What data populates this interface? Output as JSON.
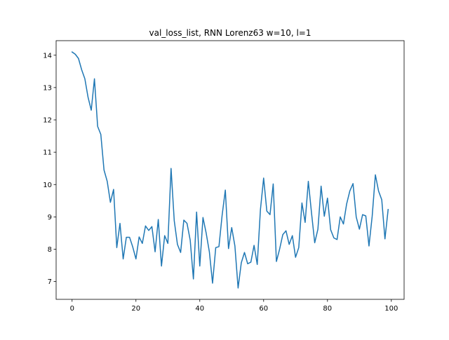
{
  "chart_data": {
    "type": "line",
    "title": "val_loss_list, RNN Lorenz63 w=10, l=1",
    "xlabel": "",
    "ylabel": "",
    "xlim": [
      -5,
      104
    ],
    "ylim": [
      6.45,
      14.45
    ],
    "xticks": [
      0,
      20,
      40,
      60,
      80,
      100
    ],
    "yticks": [
      7,
      8,
      9,
      10,
      11,
      12,
      13,
      14
    ],
    "grid": false,
    "line_color": "#1f77b4",
    "series": [
      {
        "x": [
          0,
          1,
          2,
          3,
          4,
          5,
          6,
          7,
          8,
          9,
          10,
          11,
          12,
          13,
          14,
          15,
          16,
          17,
          18,
          19,
          20,
          21,
          22,
          23,
          24,
          25,
          26,
          27,
          28,
          29,
          30,
          31,
          32,
          33,
          34,
          35,
          36,
          37,
          38,
          39,
          40,
          41,
          42,
          43,
          44,
          45,
          46,
          47,
          48,
          49,
          50,
          51,
          52,
          53,
          54,
          55,
          56,
          57,
          58,
          59,
          60,
          61,
          62,
          63,
          64,
          65,
          66,
          67,
          68,
          69,
          70,
          71,
          72,
          73,
          74,
          75,
          76,
          77,
          78,
          79,
          80,
          81,
          82,
          83,
          84,
          85,
          86,
          87,
          88,
          89,
          90,
          91,
          92,
          93,
          94,
          95,
          96,
          97,
          98,
          99
        ],
        "values": [
          14.1,
          14.03,
          13.9,
          13.55,
          13.27,
          12.7,
          12.3,
          13.27,
          11.8,
          11.55,
          10.45,
          10.1,
          9.45,
          9.85,
          8.05,
          8.8,
          7.7,
          8.37,
          8.37,
          8.07,
          7.7,
          8.38,
          8.18,
          8.72,
          8.58,
          8.7,
          7.92,
          8.92,
          7.48,
          8.42,
          8.18,
          10.5,
          8.88,
          8.15,
          7.9,
          8.9,
          8.8,
          8.28,
          7.08,
          9.15,
          7.48,
          8.98,
          8.5,
          7.92,
          6.95,
          8.05,
          8.08,
          9.05,
          9.83,
          8.02,
          8.67,
          8.1,
          6.8,
          7.58,
          7.9,
          7.55,
          7.6,
          8.12,
          7.53,
          9.23,
          10.2,
          9.18,
          9.07,
          10.02,
          7.62,
          8.0,
          8.45,
          8.57,
          8.15,
          8.42,
          7.75,
          8.05,
          9.43,
          8.83,
          10.1,
          9.12,
          8.2,
          8.62,
          9.95,
          9.02,
          9.58,
          8.6,
          8.35,
          8.3,
          9.0,
          8.78,
          9.4,
          9.8,
          10.03,
          9.0,
          8.62,
          9.07,
          9.03,
          8.1,
          9.02,
          10.3,
          9.8,
          9.53,
          8.32,
          9.23
        ]
      }
    ]
  }
}
